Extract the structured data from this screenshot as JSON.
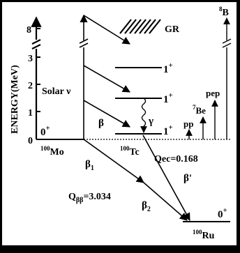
{
  "diagram": {
    "axis": {
      "title": "ENERGY(MeV)",
      "ticks": [
        {
          "value": 0,
          "label": "0"
        },
        {
          "value": 1,
          "label": "1"
        },
        {
          "value": 2,
          "label": "2"
        },
        {
          "value": 3,
          "label": "3"
        },
        {
          "value": 8,
          "label": "8"
        }
      ]
    },
    "nuclei": {
      "mo": {
        "mass": "100",
        "symbol": "Mo",
        "spin": "0",
        "parity": "+"
      },
      "tc": {
        "mass": "100",
        "symbol": "Tc"
      },
      "ru": {
        "mass": "100",
        "symbol": "Ru",
        "spin": "0",
        "parity": "+"
      }
    },
    "levels": [
      {
        "spin": "1",
        "parity": "+"
      },
      {
        "spin": "1",
        "parity": "+"
      },
      {
        "spin": "1",
        "parity": "+"
      }
    ],
    "labels": {
      "gr": "GR",
      "solar": "Solar ν",
      "beta": "β",
      "gamma": "γ",
      "beta1": "β",
      "beta1_sub": "1",
      "beta2": "β",
      "beta2_sub": "2",
      "beta_prime": "β'",
      "qbb": "Q",
      "qbb_sub": "ββ",
      "qbb_value": "=3.034",
      "qec": "Qec=0.168"
    },
    "solar_sources": [
      {
        "pre": "",
        "name": "pp"
      },
      {
        "pre": "7",
        "name": "Be"
      },
      {
        "pre": "",
        "name": "pep"
      },
      {
        "pre": "8",
        "name": "B"
      }
    ]
  }
}
